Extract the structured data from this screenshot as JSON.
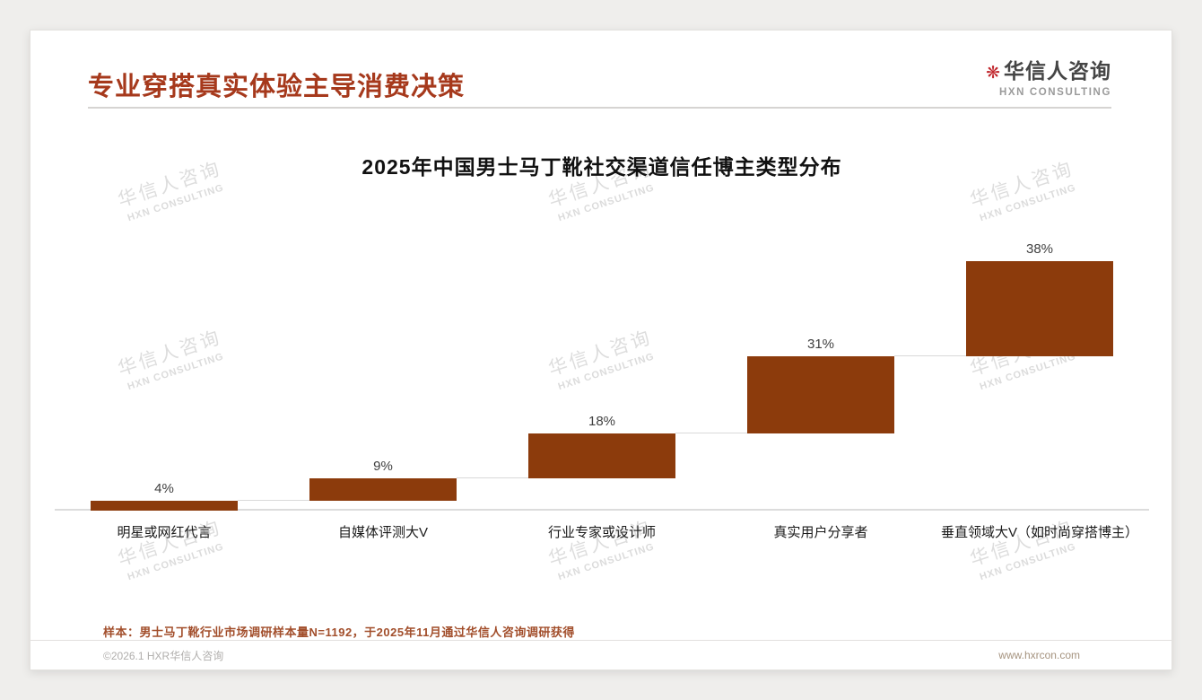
{
  "page": {
    "header": {
      "title": "专业穿搭真实体验主导消费决策",
      "logo": {
        "mark": "❋",
        "name": "华信人咨询",
        "subtitle": "HXN CONSULTING"
      }
    },
    "watermark": {
      "line1": "华信人咨询",
      "line2": "HXN CONSULTING"
    },
    "footnote": "样本：男士马丁靴行业市场调研样本量N=1192，于2025年11月通过华信人咨询调研获得",
    "footer": {
      "left": "©2026.1 HXR华信人咨询",
      "right": "www.hxrcon.com"
    }
  },
  "chart_data": {
    "type": "bar",
    "style": "waterfall-cumulative",
    "title": "2025年中国男士马丁靴社交渠道信任博主类型分布",
    "categories": [
      "明星或网红代言",
      "自媒体评测大V",
      "行业专家或设计师",
      "真实用户分享者",
      "垂直领域大V（如时尚穿搭博主）"
    ],
    "values": [
      4,
      9,
      18,
      31,
      38
    ],
    "value_labels": [
      "4%",
      "9%",
      "18%",
      "31%",
      "38%"
    ],
    "unit": "%",
    "ylim": [
      0,
      100
    ],
    "cumulative_total": 100,
    "bar_color": "#8c3b0c",
    "connector_color": "#d9d9d9",
    "baseline": true,
    "grid": false,
    "legend": "none"
  }
}
